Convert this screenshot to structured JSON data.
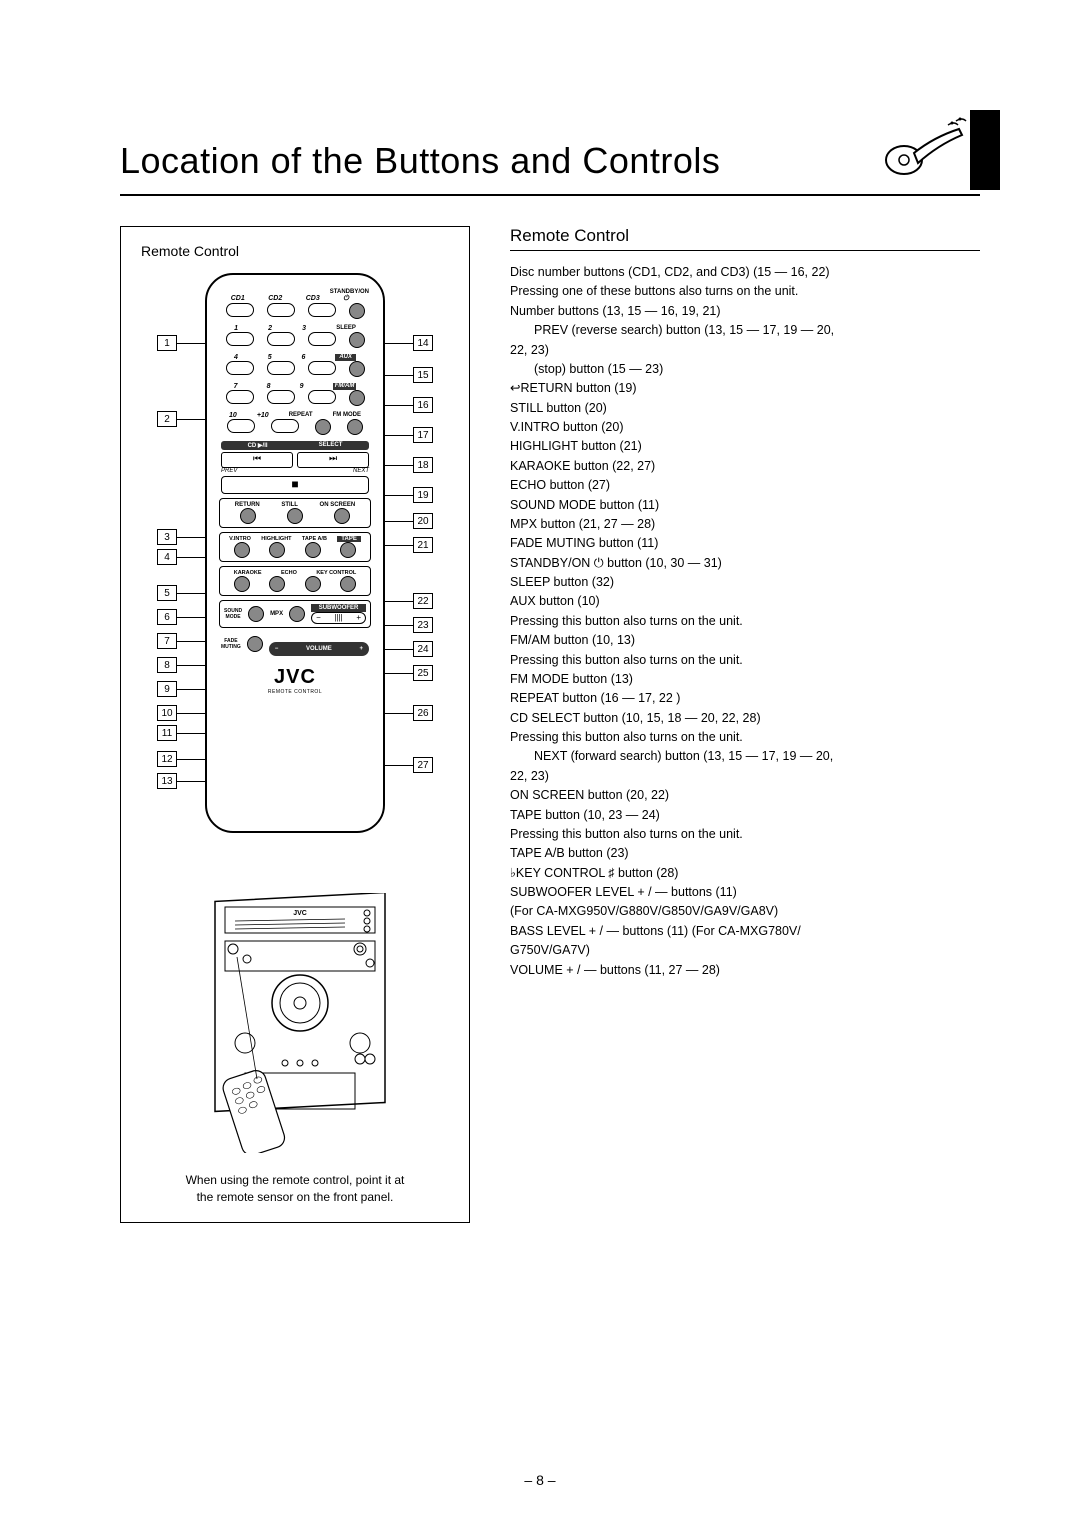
{
  "page": {
    "title": "Location of the Buttons and Controls",
    "footer": "– 8 –"
  },
  "leftDiagram": {
    "title": "Remote Control",
    "caption1": "When using the remote control, point it at",
    "caption2": "the remote sensor on the front panel.",
    "brand": "JVC",
    "rcText": "REMOTE CONTROL"
  },
  "remoteLabels": {
    "standby": "STANDBY/ON",
    "cd1": "CD1",
    "cd2": "CD2",
    "cd3": "CD3",
    "n1": "1",
    "n2": "2",
    "n3": "3",
    "n4": "4",
    "n5": "5",
    "n6": "6",
    "n7": "7",
    "n8": "8",
    "n9": "9",
    "n10": "10",
    "p10": "+10",
    "sleep": "SLEEP",
    "aux": "AUX",
    "fmam": "FM/AM",
    "repeat": "REPEAT",
    "fmmode": "FM MODE",
    "cdplay": "CD ▶/II",
    "select": "SELECT",
    "prev": "PREV",
    "next": "NEXT",
    "return": "RETURN",
    "still": "STILL",
    "onscreen": "ON SCREEN",
    "vintro": "V.INTRO",
    "highlight": "HIGHLIGHT",
    "tapeab": "TAPE A/B",
    "tape": "TAPE",
    "karaoke": "KARAOKE",
    "echo": "ECHO",
    "keycontrol": "KEY CONTROL",
    "soundmode": "SOUND\nMODE",
    "mpx": "MPX",
    "subwoofer": "SUBWOOFER",
    "fademuting": "FADE\nMUTING",
    "volume": "VOLUME"
  },
  "calloutsLeft": [
    "1",
    "2",
    "3",
    "4",
    "5",
    "6",
    "7",
    "8",
    "9",
    "10",
    "11",
    "12",
    "13"
  ],
  "calloutsRight": [
    "14",
    "15",
    "16",
    "17",
    "18",
    "19",
    "20",
    "21",
    "22",
    "23",
    "24",
    "25",
    "26",
    "27"
  ],
  "calloutLeftY": [
    62,
    138,
    256,
    276,
    312,
    336,
    360,
    384,
    408,
    432,
    452,
    478,
    500
  ],
  "calloutRightY": [
    62,
    94,
    124,
    154,
    184,
    214,
    240,
    264,
    320,
    344,
    368,
    392,
    432,
    484
  ],
  "rightSection": {
    "title": "Remote Control",
    "items": [
      {
        "t": "Disc number buttons (CD1, CD2, and CD3) (15 — 16, 22)"
      },
      {
        "t": "Pressing one of these buttons also turns on the unit."
      },
      {
        "t": "Number buttons (13, 15 — 16, 19, 21)"
      },
      {
        "t": "PREV (reverse search) button (13, 15 — 17, 19 — 20,",
        "indent": true,
        "cont": "22, 23)"
      },
      {
        "t": " (stop) button (15 — 23)",
        "indent": true
      },
      {
        "t": "RETURN button (19)",
        "icon": "return"
      },
      {
        "t": "STILL button (20)"
      },
      {
        "t": "V.INTRO button (20)"
      },
      {
        "t": "HIGHLIGHT button (21)"
      },
      {
        "t": "KARAOKE button (22, 27)"
      },
      {
        "t": "ECHO button (27)"
      },
      {
        "t": "SOUND MODE button (11)"
      },
      {
        "t": "MPX button (21, 27 — 28)"
      },
      {
        "t": "FADE MUTING button (11)"
      },
      {
        "t": "STANDBY/ON    button (10, 30 — 31)",
        "icon": "power"
      },
      {
        "t": "SLEEP button (32)"
      },
      {
        "t": "AUX button (10)"
      },
      {
        "t": "Pressing this button also turns on the unit."
      },
      {
        "t": "FM/AM button (10, 13)"
      },
      {
        "t": "Pressing this button also turns on the unit."
      },
      {
        "t": "FM MODE button (13)"
      },
      {
        "t": "REPEAT button (16 — 17, 22 )"
      },
      {
        "t": "CD        SELECT button (10, 15, 18 — 20, 22, 28)"
      },
      {
        "t": "Pressing this button also turns on the unit."
      },
      {
        "t": "NEXT (forward search) button (13, 15 — 17, 19 — 20,",
        "indent": true,
        "cont": "22, 23)"
      },
      {
        "t": "ON SCREEN button (20, 22)"
      },
      {
        "t": "TAPE        button (10, 23 — 24)"
      },
      {
        "t": "Pressing this button also turns on the unit."
      },
      {
        "t": "TAPE A/B button (23)"
      },
      {
        "t": "KEY CONTROL   button (28)",
        "icon": "flat"
      },
      {
        "t": "SUBWOOFER LEVEL + / — buttons (11)"
      },
      {
        "t": "(For CA-MXG950V/G880V/G850V/GA9V/GA8V)"
      },
      {
        "t": "BASS LEVEL + / — buttons (11) (For CA-MXG780V/",
        "cont": "G750V/GA7V)"
      },
      {
        "t": "VOLUME + / — buttons (11, 27 — 28)"
      }
    ]
  },
  "style": {
    "pageBg": "#ffffff",
    "textColor": "#000000",
    "accentDark": "#333333",
    "titleFontSize": 36,
    "bodyFontSize": 12.5
  }
}
